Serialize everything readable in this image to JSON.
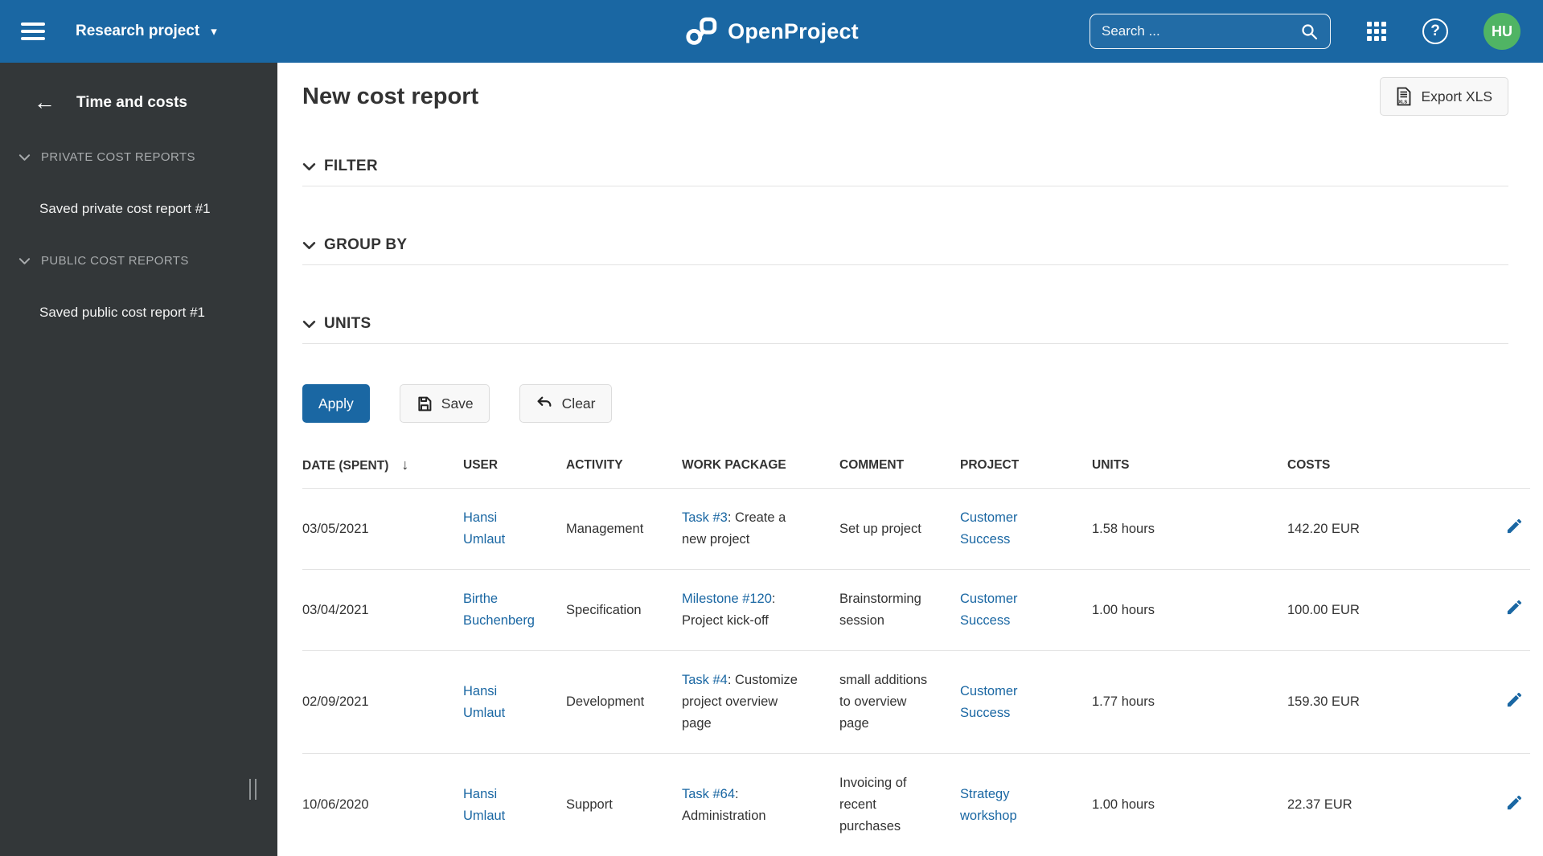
{
  "colors": {
    "primary": "#1A67A3",
    "topbar_bg": "#1A67A3",
    "sidebar_bg": "#333739",
    "avatar_bg": "#50B464",
    "link": "#1A67A3",
    "border": "#E3E3E3"
  },
  "icons": {
    "back_arrow": "←",
    "caret_down": "▾",
    "help": "?",
    "sort_desc": "↓"
  },
  "topbar": {
    "project_name": "Research project",
    "logo_text": "OpenProject",
    "search_placeholder": "Search ...",
    "avatar_initials": "HU"
  },
  "sidebar": {
    "title": "Time and costs",
    "sections": [
      {
        "label": "PRIVATE COST REPORTS",
        "items": [
          "Saved private cost report #1"
        ]
      },
      {
        "label": "PUBLIC COST REPORTS",
        "items": [
          "Saved public cost report #1"
        ]
      }
    ]
  },
  "main": {
    "title": "New cost report",
    "export_button": "Export XLS",
    "panels": [
      {
        "label": "FILTER"
      },
      {
        "label": "GROUP BY"
      },
      {
        "label": "UNITS"
      }
    ],
    "toolbar": {
      "apply": "Apply",
      "save": "Save",
      "clear": "Clear"
    },
    "table": {
      "columns": [
        "DATE (SPENT)",
        "USER",
        "ACTIVITY",
        "WORK PACKAGE",
        "COMMENT",
        "PROJECT",
        "UNITS",
        "COSTS"
      ],
      "sorted_column": "DATE (SPENT)",
      "sort_direction": "descending",
      "rows": [
        {
          "date": "03/05/2021",
          "user": "Hansi Umlaut",
          "activity": "Management",
          "work_package_link": "Task #3",
          "work_package_rest": ": Create a new project",
          "comment": "Set up project",
          "project": "Customer Success",
          "units": "1.58 hours",
          "costs": "142.20 EUR"
        },
        {
          "date": "03/04/2021",
          "user": "Birthe Buchenberg",
          "activity": "Specification",
          "work_package_link": "Milestone #120",
          "work_package_rest": ": Project kick-off",
          "comment": "Brainstorming session",
          "project": "Customer Success",
          "units": "1.00 hours",
          "costs": "100.00 EUR"
        },
        {
          "date": "02/09/2021",
          "user": "Hansi Umlaut",
          "activity": "Development",
          "work_package_link": "Task #4",
          "work_package_rest": ": Customize project overview page",
          "comment": "small additions to overview page",
          "project": "Customer Success",
          "units": "1.77 hours",
          "costs": "159.30 EUR"
        },
        {
          "date": "10/06/2020",
          "user": "Hansi Umlaut",
          "activity": "Support",
          "work_package_link": "Task #64",
          "work_package_rest": ": Administration",
          "comment": "Invoicing of recent purchases",
          "project": "Strategy workshop",
          "units": "1.00 hours",
          "costs": "22.37 EUR"
        }
      ]
    }
  }
}
